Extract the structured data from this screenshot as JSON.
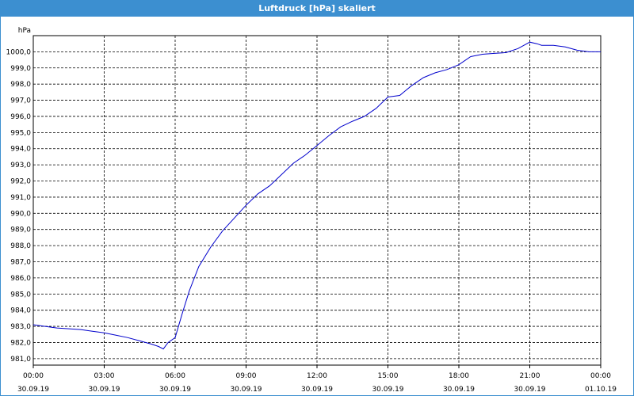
{
  "window": {
    "title": "Luftdruck [hPa] skaliert"
  },
  "colors": {
    "titlebar": "#3c8fd0",
    "line": "#0000cc",
    "grid": "#000000"
  },
  "chart_data": {
    "type": "line",
    "title": "Luftdruck [hPa] skaliert",
    "ylabel": "hPa",
    "xlabel": "",
    "ylim": [
      980.6,
      1001.0
    ],
    "xlim": [
      0,
      24
    ],
    "grid": true,
    "grid_style": "dashed",
    "y_ticks": [
      "981,0",
      "982,0",
      "983,0",
      "984,0",
      "985,0",
      "986,0",
      "987,0",
      "988,0",
      "989,0",
      "990,0",
      "991,0",
      "992,0",
      "993,0",
      "994,0",
      "995,0",
      "996,0",
      "997,0",
      "998,0",
      "999,0",
      "1000,0"
    ],
    "x_ticks": [
      {
        "time": "00:00",
        "date": "30.09.19"
      },
      {
        "time": "03:00",
        "date": "30.09.19"
      },
      {
        "time": "06:00",
        "date": "30.09.19"
      },
      {
        "time": "09:00",
        "date": "30.09.19"
      },
      {
        "time": "12:00",
        "date": "30.09.19"
      },
      {
        "time": "15:00",
        "date": "30.09.19"
      },
      {
        "time": "18:00",
        "date": "30.09.19"
      },
      {
        "time": "21:00",
        "date": "30.09.19"
      },
      {
        "time": "00:00",
        "date": "01.10.19"
      }
    ],
    "series": [
      {
        "x": [
          0,
          0.5,
          1,
          1.5,
          2,
          2.5,
          3,
          3.5,
          4,
          4.5,
          5,
          5.3,
          5.5,
          5.7,
          6,
          6.3,
          6.6,
          7,
          7.5,
          8,
          8.5,
          9,
          9.5,
          10,
          10.5,
          11,
          11.5,
          12,
          12.5,
          13,
          13.5,
          14,
          14.5,
          15,
          15.5,
          16,
          16.5,
          17,
          17.5,
          18,
          18.5,
          19,
          19.5,
          20,
          20.5,
          21,
          21.3,
          21.5,
          22,
          22.5,
          23,
          23.5,
          24
        ],
        "y": [
          983.1,
          983.0,
          982.9,
          982.85,
          982.8,
          982.7,
          982.6,
          982.45,
          982.3,
          982.1,
          981.9,
          981.75,
          981.6,
          982.0,
          982.3,
          983.8,
          985.2,
          986.7,
          987.9,
          988.9,
          989.7,
          990.5,
          991.2,
          991.7,
          992.4,
          993.1,
          993.6,
          994.2,
          994.8,
          995.35,
          995.7,
          996.0,
          996.5,
          997.2,
          997.3,
          997.9,
          998.4,
          998.7,
          998.9,
          999.2,
          999.7,
          999.85,
          999.9,
          999.95,
          1000.2,
          1000.6,
          1000.5,
          1000.4,
          1000.4,
          1000.3,
          1000.1,
          1000.0,
          1000.0
        ]
      }
    ]
  }
}
